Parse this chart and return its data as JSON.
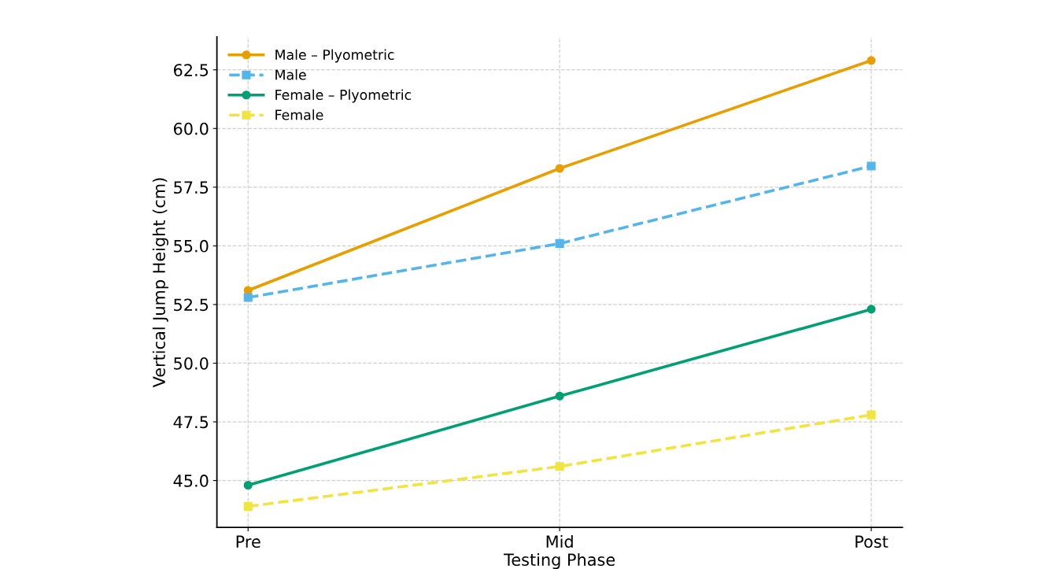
{
  "chart_data": {
    "type": "line",
    "xlabel": "Testing Phase",
    "ylabel": "Vertical Jump Height (cm)",
    "categories": [
      "Pre",
      "Mid",
      "Post"
    ],
    "series": [
      {
        "name": "Male – Plyometric",
        "color": "#e69f00",
        "marker": "circle",
        "line_style": "solid",
        "values": [
          53.1,
          58.3,
          62.9
        ]
      },
      {
        "name": "Male",
        "color": "#56b4e9",
        "marker": "square",
        "line_style": "dashed",
        "values": [
          52.8,
          55.1,
          58.4
        ]
      },
      {
        "name": "Female – Plyometric",
        "color": "#009e73",
        "marker": "circle",
        "line_style": "solid",
        "values": [
          44.8,
          48.6,
          52.3
        ]
      },
      {
        "name": "Female",
        "color": "#f0e442",
        "marker": "square",
        "line_style": "dashed",
        "values": [
          43.9,
          45.6,
          47.8
        ]
      }
    ],
    "ylim": [
      43.0,
      63.9
    ],
    "yticks": [
      {
        "value": 45,
        "label": "45.0"
      },
      {
        "value": 47.5,
        "label": "47.5"
      },
      {
        "value": 50,
        "label": "50.0"
      },
      {
        "value": 52.5,
        "label": "52.5"
      },
      {
        "value": 55,
        "label": "55.0"
      },
      {
        "value": 57.5,
        "label": "57.5"
      },
      {
        "value": 60,
        "label": "60.0"
      },
      {
        "value": 62.5,
        "label": "62.5"
      }
    ],
    "grid": true,
    "legend": "top left"
  }
}
